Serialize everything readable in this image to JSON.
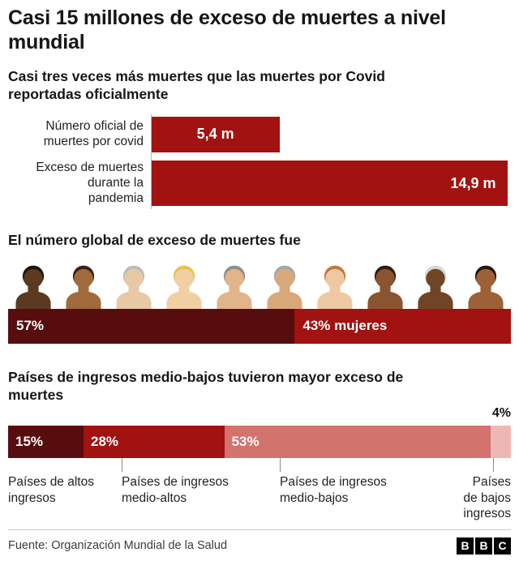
{
  "page": {
    "title": "Casi 15 millones de exceso de muertes a nivel\nmundial",
    "footer": {
      "source": "Fuente: Organización Mundial de la Salud",
      "logo_letters": [
        "B",
        "B",
        "C"
      ]
    }
  },
  "colors": {
    "red": "#a11210",
    "dark_maroon": "#570d0d",
    "light_red": "#d2736e",
    "pale_pink": "#edb8b4",
    "axis": "#b9b9b9"
  },
  "chart_data": [
    {
      "type": "bar",
      "title": "Casi tres veces más muertes que las muertes por Covid\nreportadas oficialmente",
      "categories": [
        "Número oficial de\nmuertes por covid",
        "Exceso de muertes\ndurante la\npandemia"
      ],
      "values": [
        5.4,
        14.9
      ],
      "value_labels": [
        "5,4 m",
        "14,9 m"
      ],
      "xlim": [
        0,
        15.05
      ],
      "bar_color": "#a11210",
      "grid": false,
      "legend": "none"
    },
    {
      "type": "stacked-bar",
      "title": "El número global de exceso de muertes fue",
      "segments": [
        {
          "label": "57%",
          "value": 57,
          "color": "#570d0d"
        },
        {
          "label": "43% mujeres",
          "value": 43,
          "color": "#a11210"
        }
      ],
      "people": [
        {
          "skin": "#5b3a21",
          "hair": "#1b140f"
        },
        {
          "skin": "#a06a3c",
          "hair": "#33231a"
        },
        {
          "skin": "#e9c9a5",
          "hair": "#b9bdb9"
        },
        {
          "skin": "#f0cfa3",
          "hair": "#e8c152"
        },
        {
          "skin": "#e2b489",
          "hair": "#8f8f89"
        },
        {
          "skin": "#d8a87b",
          "hair": "#a3a7a5"
        },
        {
          "skin": "#eec8a2",
          "hair": "#c5793d"
        },
        {
          "skin": "#8a5430",
          "hair": "#2e1d12"
        },
        {
          "skin": "#6f4526",
          "hair": "#d6d6d2"
        },
        {
          "skin": "#9c6136",
          "hair": "#241811"
        }
      ]
    },
    {
      "type": "stacked-bar",
      "title": "Países de ingresos medio-bajos tuvieron mayor exceso de\nmuertes",
      "segments": [
        {
          "label": "15%",
          "value": 15,
          "color": "#570d0d",
          "label_inside": true
        },
        {
          "label": "28%",
          "value": 28,
          "color": "#a11210",
          "label_inside": true
        },
        {
          "label": "53%",
          "value": 53,
          "color": "#d2736e",
          "label_inside": true
        },
        {
          "label": "4%",
          "value": 4,
          "color": "#edb8b4",
          "label_inside": false
        }
      ],
      "category_labels": [
        "Países de altos\ningresos",
        "Países de ingresos\nmedio-altos",
        "Países de ingresos\nmedio-bajos",
        "Países\nde bajos\ningresos"
      ]
    }
  ]
}
